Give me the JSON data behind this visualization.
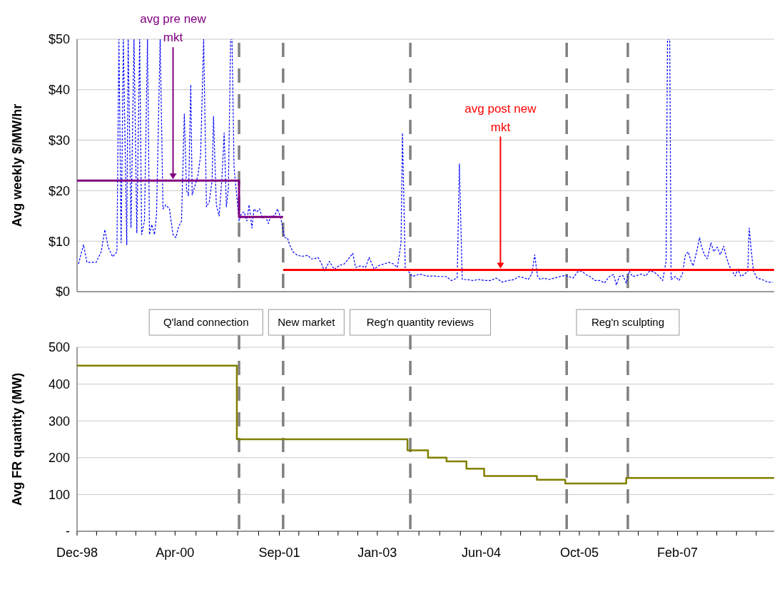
{
  "chart_data": [
    {
      "type": "line",
      "ylabel": "Avg weekly $/MW/hr",
      "xlim": [
        "1998-12-01",
        "2008-05-26"
      ],
      "ylim": [
        0,
        50
      ],
      "yticks": [
        {
          "value": 0,
          "label": "$0"
        },
        {
          "value": 10,
          "label": "$10"
        },
        {
          "value": 20,
          "label": "$20"
        },
        {
          "value": 30,
          "label": "$30"
        },
        {
          "value": 40,
          "label": "$40"
        },
        {
          "value": 50,
          "label": "$50"
        }
      ],
      "tick_labels": "y",
      "grid": "y",
      "series": [
        {
          "color": "#0000ff",
          "line_style": "dashed",
          "x": [
            "1998-12-08",
            "1999-01-02",
            "1999-01-19",
            "1999-03-06",
            "1999-03-31",
            "1999-04-18",
            "1999-05-05",
            "1999-05-27",
            "1999-06-17",
            "1999-06-27",
            "1999-07-08",
            "1999-07-19",
            "1999-08-05",
            "1999-08-12",
            "1999-08-26",
            "1999-09-10",
            "1999-09-24",
            "1999-10-08",
            "1999-10-18",
            "1999-11-01",
            "1999-11-16",
            "1999-11-26",
            "1999-12-07",
            "1999-12-21",
            "1999-12-31",
            "2000-01-18",
            "2000-02-01",
            "2000-02-15",
            "2000-03-04",
            "2000-03-22",
            "2000-04-05",
            "2000-04-19",
            "2000-05-03",
            "2000-05-17",
            "2000-05-28",
            "2000-06-07",
            "2000-06-18",
            "2000-06-25",
            "2000-07-06",
            "2000-07-23",
            "2000-08-06",
            "2000-08-21",
            "2000-09-04",
            "2000-09-18",
            "2000-10-02",
            "2000-10-09",
            "2000-10-23",
            "2000-11-06",
            "2000-11-20",
            "2000-12-01",
            "2000-12-12",
            "2000-12-22",
            "2001-01-02",
            "2001-01-09",
            "2001-01-19",
            "2001-01-30",
            "2001-02-13",
            "2001-02-24",
            "2001-03-10",
            "2001-03-24",
            "2001-04-04",
            "2001-04-18",
            "2001-04-28",
            "2001-05-12",
            "2001-05-26",
            "2001-06-10",
            "2001-06-24",
            "2001-07-08",
            "2001-07-22",
            "2001-08-09",
            "2001-08-23",
            "2001-09-09",
            "2001-09-27",
            "2001-10-11",
            "2001-10-22",
            "2001-11-08",
            "2001-11-30",
            "2001-12-24",
            "2002-01-22",
            "2002-02-05",
            "2002-02-22",
            "2002-03-12",
            "2002-03-30",
            "2002-04-13",
            "2002-05-08",
            "2002-06-01",
            "2002-06-26",
            "2002-07-21",
            "2002-08-11",
            "2002-09-01",
            "2002-09-15",
            "2002-10-10",
            "2002-11-04",
            "2002-11-21",
            "2002-12-16",
            "2003-01-10",
            "2003-02-03",
            "2003-02-28",
            "2003-03-21",
            "2003-04-11",
            "2003-04-29",
            "2003-05-06",
            "2003-05-13",
            "2003-05-20",
            "2003-06-03",
            "2003-06-25",
            "2003-07-30",
            "2003-09-03",
            "2003-10-02",
            "2003-11-02",
            "2003-12-08",
            "2004-01-05",
            "2004-02-02",
            "2004-02-13",
            "2004-02-20",
            "2004-02-27",
            "2004-03-23",
            "2004-04-20",
            "2004-05-18",
            "2004-06-19",
            "2004-07-17",
            "2004-08-14",
            "2004-09-12",
            "2004-10-13",
            "2004-11-11",
            "2004-12-05",
            "2005-01-03",
            "2005-01-20",
            "2005-02-07",
            "2005-02-21",
            "2005-03-07",
            "2005-03-21",
            "2005-04-08",
            "2005-05-03",
            "2005-05-31",
            "2005-06-28",
            "2005-07-23",
            "2005-08-09",
            "2005-08-31",
            "2005-09-21",
            "2005-10-12",
            "2005-11-02",
            "2005-11-23",
            "2005-12-18",
            "2006-01-12",
            "2006-02-02",
            "2006-02-27",
            "2006-03-20",
            "2006-04-03",
            "2006-04-17",
            "2006-05-05",
            "2006-05-22",
            "2006-06-06",
            "2006-06-23",
            "2006-07-14",
            "2006-08-05",
            "2006-08-26",
            "2006-09-16",
            "2006-10-07",
            "2006-10-28",
            "2006-11-19",
            "2006-12-06",
            "2006-12-13",
            "2006-12-24",
            "2006-12-31",
            "2007-01-21",
            "2007-02-08",
            "2007-02-25",
            "2007-03-12",
            "2007-03-26",
            "2007-04-09",
            "2007-04-19",
            "2007-05-07",
            "2007-05-21",
            "2007-06-01",
            "2007-06-15",
            "2007-06-29",
            "2007-07-17",
            "2007-07-31",
            "2007-08-17",
            "2007-09-01",
            "2007-09-18",
            "2007-10-02",
            "2007-10-16",
            "2007-10-31",
            "2007-11-14",
            "2007-11-28",
            "2007-12-12",
            "2007-12-30",
            "2008-01-16",
            "2008-01-23",
            "2008-02-03",
            "2008-02-13",
            "2008-03-02",
            "2008-03-27",
            "2008-04-24",
            "2008-05-19"
          ],
          "values": [
            5.5,
            9.3,
            5.8,
            5.8,
            7.9,
            12.3,
            8.8,
            6.9,
            7.9,
            50,
            9.7,
            50,
            9.3,
            50,
            12.6,
            50,
            11.6,
            50,
            11.3,
            14,
            50,
            11.3,
            13.3,
            11.3,
            15.4,
            50,
            16.4,
            17.2,
            16.4,
            11.3,
            10.7,
            12.9,
            14,
            35.2,
            20,
            19,
            41,
            19.2,
            20.6,
            22.9,
            27,
            50,
            16.8,
            17.8,
            22,
            34.7,
            17.2,
            15,
            22.5,
            31.4,
            16.8,
            20.4,
            50,
            50,
            24.8,
            20,
            14,
            15.4,
            15.8,
            14,
            17.2,
            12.6,
            16.4,
            15.8,
            16.4,
            14.5,
            15,
            13.5,
            15,
            15,
            16.4,
            14.5,
            10.7,
            10.7,
            9.3,
            7.9,
            7.2,
            7,
            7.2,
            6.5,
            6.5,
            6.8,
            5.5,
            4.1,
            6,
            4.4,
            5.2,
            5.5,
            6.5,
            7.6,
            4.8,
            5.1,
            4.8,
            6.8,
            4.5,
            5.2,
            5.5,
            5.8,
            5.5,
            4.8,
            9.7,
            31.4,
            18.2,
            4.5,
            4.1,
            3,
            3.5,
            3.1,
            3.1,
            3,
            3,
            2.2,
            2.7,
            25.3,
            13.8,
            2.4,
            2.4,
            2.2,
            2.4,
            2.2,
            2.2,
            2.7,
            1.9,
            2.2,
            2.4,
            3,
            2.7,
            2.4,
            3.5,
            7.3,
            3.1,
            2.4,
            2.7,
            2.4,
            2.7,
            3,
            3.2,
            3,
            2.7,
            3.9,
            4.1,
            3.4,
            3,
            2.2,
            2.2,
            1.7,
            3,
            3.4,
            1.3,
            3,
            3.2,
            1.7,
            4.1,
            3,
            3.2,
            3.5,
            3.1,
            4.1,
            3.9,
            3.2,
            2.2,
            6,
            50,
            50,
            2.4,
            3,
            2.2,
            3.5,
            7.3,
            7.9,
            6,
            5.1,
            7.9,
            10.7,
            8.8,
            7.3,
            6.5,
            9.7,
            7.9,
            8.8,
            7.3,
            9,
            6.8,
            5.1,
            4.1,
            3.1,
            4.5,
            3,
            3.4,
            4.1,
            12.6,
            7.9,
            4.1,
            2.7,
            2.4,
            1.9,
            1.9
          ]
        },
        {
          "type": "step",
          "color": "#800080",
          "line_style": "solid",
          "x": [
            "1998-12-01",
            "2001-02-13",
            "2001-09-20"
          ],
          "values": [
            22,
            14.8,
            14.8
          ]
        },
        {
          "type": "step",
          "color": "#ff0000",
          "line_style": "solid",
          "x": [
            "2001-09-20",
            "2008-05-26"
          ],
          "values": [
            4.3,
            4.3
          ]
        }
      ],
      "ref_lines": [
        {
          "axis": "x",
          "value": "2001-02-13",
          "color": "#808080",
          "line_style": "dashed"
        },
        {
          "axis": "x",
          "value": "2001-09-20",
          "color": "#808080",
          "line_style": "dashed"
        },
        {
          "axis": "x",
          "value": "2003-06-14",
          "color": "#808080",
          "line_style": "dashed"
        },
        {
          "axis": "x",
          "value": "2005-07-30",
          "color": "#808080",
          "line_style": "dashed"
        },
        {
          "axis": "x",
          "value": "2006-05-30",
          "color": "#808080",
          "line_style": "dashed"
        }
      ],
      "annotations": [
        {
          "text": "avg pre new mkt",
          "x": "2000-03-22",
          "y": 22
        },
        {
          "text": "avg post new mkt",
          "x": "2004-09-04",
          "y": 4.3
        }
      ]
    },
    {
      "type": "step",
      "ylabel": "Avg FR quantity (MW)",
      "xlim": [
        "1998-12-01",
        "2008-05-26"
      ],
      "ylim": [
        0,
        500
      ],
      "yticks": [
        {
          "value": 0,
          "label": "-"
        },
        100,
        200,
        300,
        400,
        500
      ],
      "xticks": [
        {
          "value": "1998-12-01",
          "label": "Dec-98"
        },
        {
          "value": "1999-03-08",
          "label": null
        },
        {
          "value": "1999-06-14",
          "label": null
        },
        {
          "value": "1999-09-19",
          "label": null
        },
        {
          "value": "1999-12-26",
          "label": null
        },
        {
          "value": "2000-04-01",
          "label": "Apr-00"
        },
        {
          "value": "2000-07-14",
          "label": null
        },
        {
          "value": "2000-10-25",
          "label": null
        },
        {
          "value": "2001-02-06",
          "label": null
        },
        {
          "value": "2001-05-21",
          "label": null
        },
        {
          "value": "2001-09-01",
          "label": "Sep-01"
        },
        {
          "value": "2001-12-07",
          "label": null
        },
        {
          "value": "2002-03-15",
          "label": null
        },
        {
          "value": "2002-06-20",
          "label": null
        },
        {
          "value": "2002-09-26",
          "label": null
        },
        {
          "value": "2003-01-01",
          "label": "Jan-03"
        },
        {
          "value": "2003-04-14",
          "label": null
        },
        {
          "value": "2003-07-27",
          "label": null
        },
        {
          "value": "2003-11-07",
          "label": null
        },
        {
          "value": "2004-02-18",
          "label": null
        },
        {
          "value": "2004-06-01",
          "label": "Jun-04"
        },
        {
          "value": "2004-09-06",
          "label": null
        },
        {
          "value": "2004-12-13",
          "label": null
        },
        {
          "value": "2005-03-20",
          "label": null
        },
        {
          "value": "2005-06-25",
          "label": null
        },
        {
          "value": "2005-10-01",
          "label": "Oct-05"
        },
        {
          "value": "2006-01-07",
          "label": null
        },
        {
          "value": "2006-04-14",
          "label": null
        },
        {
          "value": "2006-07-21",
          "label": null
        },
        {
          "value": "2006-10-26",
          "label": null
        },
        {
          "value": "2007-02-01",
          "label": "Feb-07"
        },
        {
          "value": "2007-05-10",
          "label": null
        },
        {
          "value": "2007-08-15",
          "label": null
        },
        {
          "value": "2007-11-21",
          "label": null
        },
        {
          "value": "2008-02-27",
          "label": null
        }
      ],
      "grid": "y",
      "series": [
        {
          "color": "#808000",
          "x": [
            "1998-12-01",
            "2001-02-02",
            "2003-05-31",
            "2003-09-10",
            "2003-12-11",
            "2004-03-19",
            "2004-06-15",
            "2005-03-04",
            "2005-07-23",
            "2006-05-22",
            "2008-05-26"
          ],
          "values": [
            450,
            250,
            220,
            200,
            190,
            170,
            150,
            140,
            130,
            145,
            145
          ]
        }
      ],
      "ref_lines": [
        {
          "axis": "x",
          "value": "2001-02-13",
          "color": "#808080",
          "line_style": "dashed",
          "label": "Q'land connection"
        },
        {
          "axis": "x",
          "value": "2001-09-20",
          "color": "#808080",
          "line_style": "dashed",
          "label": "New market"
        },
        {
          "axis": "x",
          "value": "2003-06-14",
          "color": "#808080",
          "line_style": "dashed",
          "label": "Reg'n quantity reviews"
        },
        {
          "axis": "x",
          "value": "2005-07-30",
          "color": "#808080",
          "line_style": "dashed"
        },
        {
          "axis": "x",
          "value": "2006-05-30",
          "color": "#808080",
          "line_style": "dashed",
          "label": "Reg'n sculpting"
        }
      ]
    }
  ]
}
